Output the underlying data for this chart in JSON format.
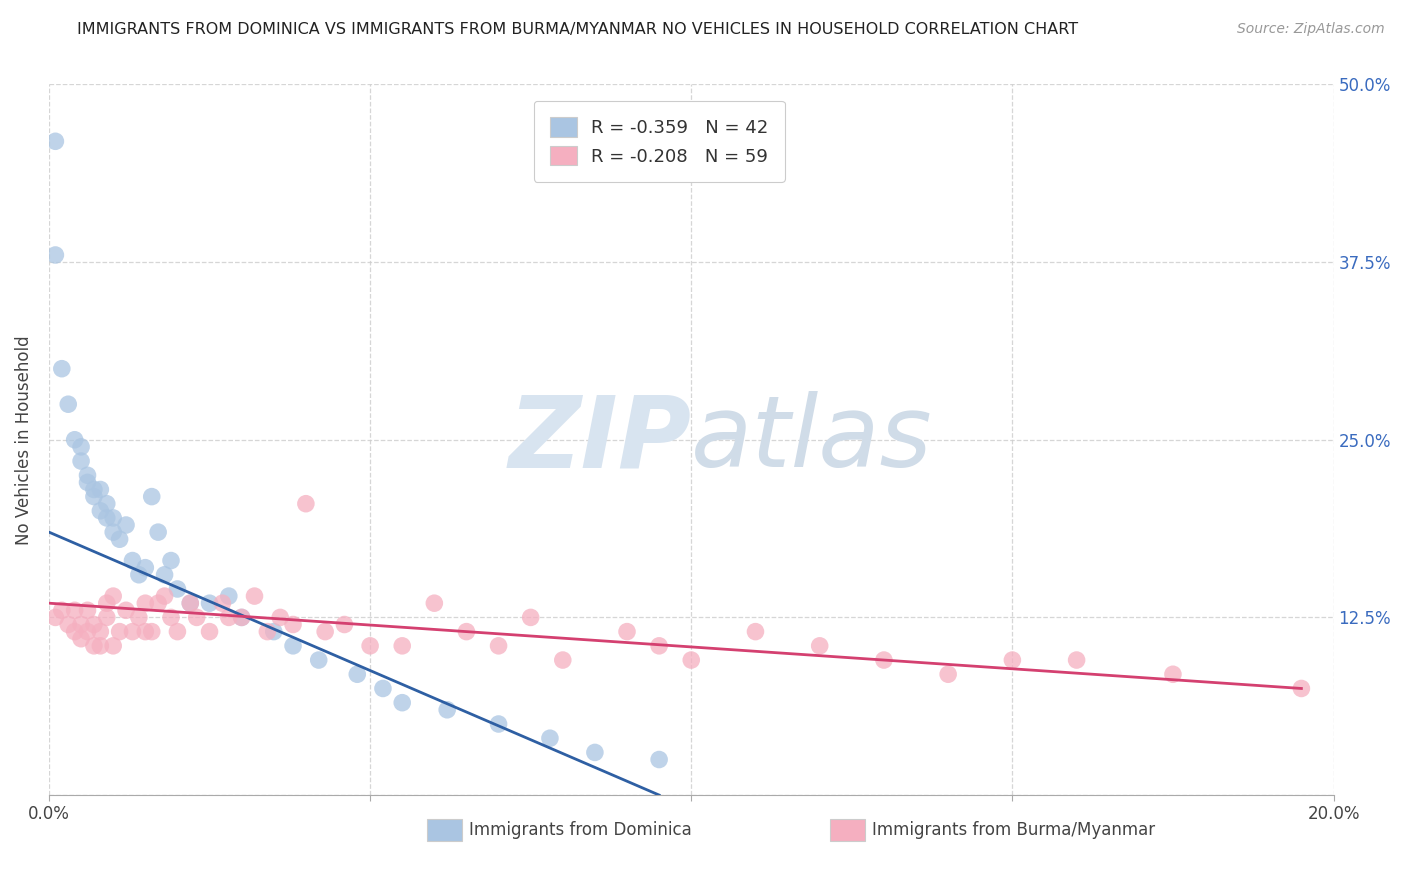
{
  "title": "IMMIGRANTS FROM DOMINICA VS IMMIGRANTS FROM BURMA/MYANMAR NO VEHICLES IN HOUSEHOLD CORRELATION CHART",
  "source": "Source: ZipAtlas.com",
  "xlabel_dominica": "Immigrants from Dominica",
  "xlabel_burma": "Immigrants from Burma/Myanmar",
  "ylabel": "No Vehicles in Household",
  "xlim": [
    0.0,
    0.2
  ],
  "ylim": [
    0.0,
    0.5
  ],
  "xticks": [
    0.0,
    0.05,
    0.1,
    0.15,
    0.2
  ],
  "xticklabels_show": [
    "0.0%",
    "",
    "",
    "",
    "20.0%"
  ],
  "yticks": [
    0.0,
    0.125,
    0.25,
    0.375,
    0.5
  ],
  "yticklabels_right": [
    "",
    "12.5%",
    "25.0%",
    "37.5%",
    "50.0%"
  ],
  "dominica_color": "#aac5e2",
  "burma_color": "#f5afc0",
  "dominica_line_color": "#2e5fa3",
  "burma_line_color": "#d44070",
  "R_dominica": -0.359,
  "N_dominica": 42,
  "R_burma": -0.208,
  "N_burma": 59,
  "dominica_x": [
    0.001,
    0.001,
    0.002,
    0.003,
    0.004,
    0.005,
    0.005,
    0.006,
    0.006,
    0.007,
    0.007,
    0.008,
    0.008,
    0.009,
    0.009,
    0.01,
    0.01,
    0.011,
    0.012,
    0.013,
    0.014,
    0.015,
    0.016,
    0.017,
    0.018,
    0.019,
    0.02,
    0.022,
    0.025,
    0.028,
    0.03,
    0.035,
    0.038,
    0.042,
    0.048,
    0.052,
    0.055,
    0.062,
    0.07,
    0.078,
    0.085,
    0.095
  ],
  "dominica_y": [
    0.46,
    0.38,
    0.3,
    0.275,
    0.25,
    0.245,
    0.235,
    0.225,
    0.22,
    0.215,
    0.21,
    0.2,
    0.215,
    0.205,
    0.195,
    0.195,
    0.185,
    0.18,
    0.19,
    0.165,
    0.155,
    0.16,
    0.21,
    0.185,
    0.155,
    0.165,
    0.145,
    0.135,
    0.135,
    0.14,
    0.125,
    0.115,
    0.105,
    0.095,
    0.085,
    0.075,
    0.065,
    0.06,
    0.05,
    0.04,
    0.03,
    0.025
  ],
  "burma_x": [
    0.001,
    0.002,
    0.003,
    0.004,
    0.004,
    0.005,
    0.005,
    0.006,
    0.006,
    0.007,
    0.007,
    0.008,
    0.008,
    0.009,
    0.009,
    0.01,
    0.01,
    0.011,
    0.012,
    0.013,
    0.014,
    0.015,
    0.015,
    0.016,
    0.017,
    0.018,
    0.019,
    0.02,
    0.022,
    0.023,
    0.025,
    0.027,
    0.028,
    0.03,
    0.032,
    0.034,
    0.036,
    0.038,
    0.04,
    0.043,
    0.046,
    0.05,
    0.055,
    0.06,
    0.065,
    0.07,
    0.075,
    0.08,
    0.09,
    0.095,
    0.1,
    0.11,
    0.12,
    0.13,
    0.14,
    0.15,
    0.16,
    0.175,
    0.195
  ],
  "burma_y": [
    0.125,
    0.13,
    0.12,
    0.13,
    0.115,
    0.12,
    0.11,
    0.115,
    0.13,
    0.105,
    0.12,
    0.115,
    0.105,
    0.125,
    0.135,
    0.14,
    0.105,
    0.115,
    0.13,
    0.115,
    0.125,
    0.115,
    0.135,
    0.115,
    0.135,
    0.14,
    0.125,
    0.115,
    0.135,
    0.125,
    0.115,
    0.135,
    0.125,
    0.125,
    0.14,
    0.115,
    0.125,
    0.12,
    0.205,
    0.115,
    0.12,
    0.105,
    0.105,
    0.135,
    0.115,
    0.105,
    0.125,
    0.095,
    0.115,
    0.105,
    0.095,
    0.115,
    0.105,
    0.095,
    0.085,
    0.095,
    0.095,
    0.085,
    0.075
  ],
  "dominica_trendline_x": [
    0.0,
    0.095
  ],
  "dominica_trendline_y": [
    0.185,
    0.0
  ],
  "burma_trendline_x": [
    0.0,
    0.195
  ],
  "burma_trendline_y": [
    0.135,
    0.075
  ]
}
